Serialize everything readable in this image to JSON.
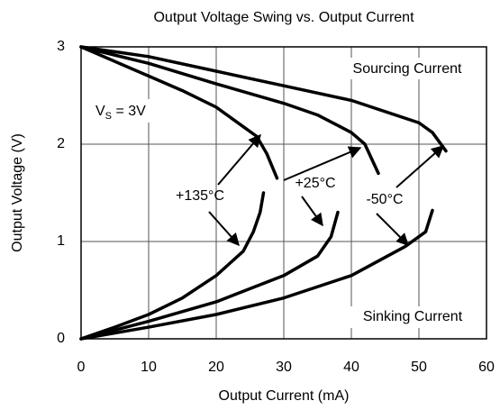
{
  "chart_data": {
    "type": "line",
    "title": "Output Voltage Swing vs. Output Current",
    "x_label": "Output Current (mA)",
    "y_label": "Output Voltage (V)",
    "xlim": [
      0,
      60
    ],
    "xticks": [
      0,
      10,
      20,
      30,
      40,
      50,
      60
    ],
    "ylim": [
      0,
      3
    ],
    "yticks": [
      0,
      1,
      2,
      3
    ],
    "grid": true,
    "annotations": [
      "+135°C",
      "+25°C",
      "-50°C",
      "Sourcing Current",
      "Sinking Current"
    ],
    "supply_label": {
      "main": "V",
      "sub": "S",
      "rest": " = 3V"
    },
    "series": [
      {
        "color": "#000000",
        "x": [
          0,
          5,
          10,
          15,
          20,
          24,
          26,
          27.5,
          29
        ],
        "values": [
          3,
          2.85,
          2.7,
          2.55,
          2.38,
          2.18,
          2.08,
          1.9,
          1.65
        ]
      },
      {
        "color": "#000000",
        "x": [
          0,
          10,
          20,
          30,
          35,
          40,
          42,
          44
        ],
        "values": [
          3,
          2.83,
          2.62,
          2.42,
          2.3,
          2.12,
          2.0,
          1.7
        ]
      },
      {
        "color": "#000000",
        "x": [
          0,
          10,
          20,
          30,
          40,
          50,
          52,
          54
        ],
        "values": [
          3,
          2.9,
          2.75,
          2.6,
          2.45,
          2.22,
          2.12,
          1.93
        ]
      },
      {
        "color": "#000000",
        "x": [
          0,
          5,
          10,
          15,
          20,
          24,
          25.5,
          26.5,
          27
        ],
        "values": [
          0,
          0.12,
          0.25,
          0.42,
          0.65,
          0.9,
          1.1,
          1.3,
          1.5
        ]
      },
      {
        "color": "#000000",
        "x": [
          0,
          10,
          20,
          30,
          35,
          37,
          38
        ],
        "values": [
          0,
          0.18,
          0.38,
          0.65,
          0.85,
          1.05,
          1.3
        ]
      },
      {
        "color": "#000000",
        "x": [
          0,
          10,
          20,
          30,
          40,
          48,
          51,
          52
        ],
        "values": [
          0,
          0.12,
          0.25,
          0.42,
          0.65,
          0.95,
          1.1,
          1.32
        ]
      }
    ]
  }
}
